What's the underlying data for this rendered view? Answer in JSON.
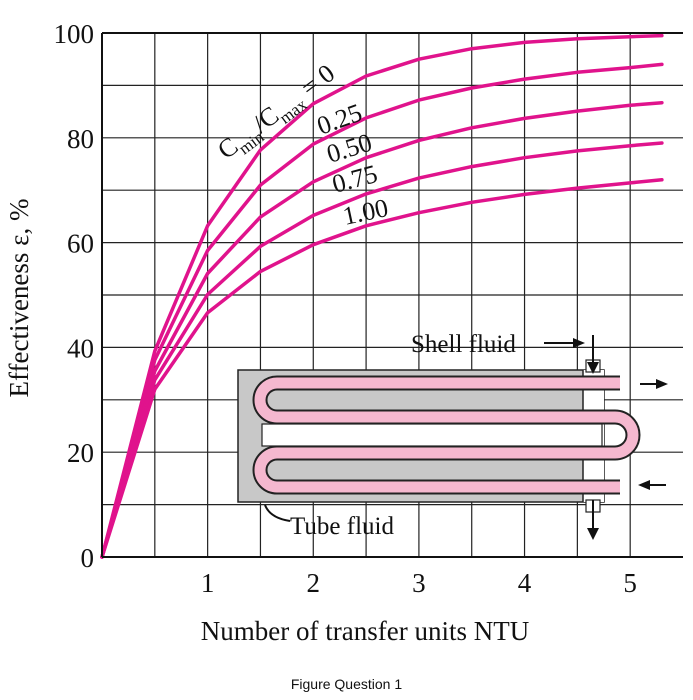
{
  "chart_data": {
    "type": "line",
    "xlabel": "Number of transfer units NTU",
    "ylabel": "Effectiveness ε, %",
    "xlim": [
      0,
      5.5
    ],
    "ylim": [
      0,
      100
    ],
    "x_ticks": [
      "1",
      "2",
      "3",
      "4",
      "5"
    ],
    "y_ticks": [
      "0",
      "20",
      "40",
      "60",
      "80",
      "100"
    ],
    "grid": true,
    "x": [
      0,
      0.5,
      1,
      1.5,
      2,
      2.5,
      3,
      3.5,
      4,
      4.5,
      5,
      5.3
    ],
    "series": [
      {
        "name": "0",
        "values": [
          0,
          39.3,
          63.2,
          77.7,
          86.5,
          91.8,
          95.0,
          97.0,
          98.2,
          98.9,
          99.3,
          99.5
        ]
      },
      {
        "name": "0.25",
        "values": [
          0,
          37.6,
          58.5,
          71.0,
          78.8,
          83.8,
          87.2,
          89.5,
          91.2,
          92.5,
          93.4,
          94.0
        ]
      },
      {
        "name": "0.50",
        "values": [
          0,
          35.5,
          54.1,
          64.9,
          71.6,
          76.2,
          79.5,
          81.9,
          83.7,
          85.1,
          86.2,
          86.7
        ]
      },
      {
        "name": "0.75",
        "values": [
          0,
          33.8,
          50.1,
          59.3,
          65.2,
          69.3,
          72.3,
          74.5,
          76.2,
          77.5,
          78.5,
          79.0
        ]
      },
      {
        "name": "1.00",
        "values": [
          0,
          32.0,
          46.6,
          54.5,
          59.6,
          63.2,
          65.7,
          67.7,
          69.2,
          70.4,
          71.4,
          72.0
        ]
      }
    ],
    "curve_family_label": {
      "c": "C",
      "min": "min",
      "slash": "/C",
      "max": "max",
      "eq": " = 0"
    },
    "line_color": "#e0138c"
  },
  "diagram": {
    "shell_fluid_label": "Shell fluid",
    "tube_fluid_label": "Tube fluid",
    "shell_color": "#c8c8c8",
    "tube_color": "#f5b8cf"
  },
  "caption": "Figure Question 1"
}
